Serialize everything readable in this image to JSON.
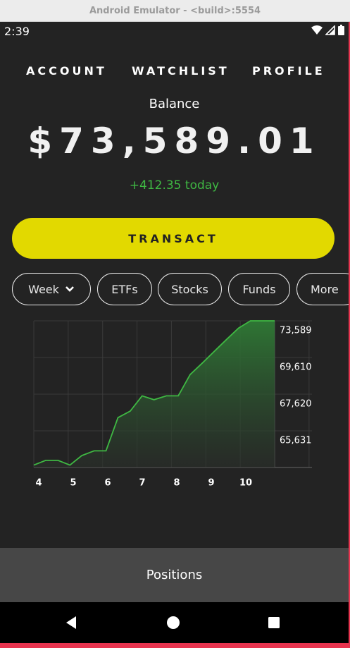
{
  "window": {
    "title": "Android Emulator - <build>:5554"
  },
  "status_bar": {
    "time": "2:39"
  },
  "nav": {
    "tabs": [
      "ACCOUNT",
      "WATCHLIST",
      "PROFILE"
    ]
  },
  "balance": {
    "label": "Balance",
    "value": "$73,589.01",
    "change": "+412.35 today"
  },
  "transact_label": "TRANSACT",
  "filters": {
    "period": "Week",
    "chips": [
      "ETFs",
      "Stocks",
      "Funds",
      "More"
    ]
  },
  "colors": {
    "accent": "#e2d900",
    "positive": "#3fb843",
    "background": "#232323"
  },
  "chart_data": {
    "type": "area",
    "x": [
      4,
      4.33,
      4.67,
      5,
      5.33,
      5.67,
      6,
      6.33,
      6.67,
      7,
      7.33,
      7.67,
      8,
      8.33,
      8.67,
      9,
      9.33,
      9.67,
      10,
      10.33,
      10.67
    ],
    "values": [
      64650,
      64940,
      64940,
      64650,
      65240,
      65530,
      65530,
      67590,
      67990,
      68940,
      68700,
      68940,
      68940,
      70260,
      70980,
      71700,
      72420,
      73140,
      73589,
      73589,
      73589
    ],
    "x_ticks": [
      "4",
      "5",
      "6",
      "7",
      "8",
      "9",
      "10"
    ],
    "y_ticks": [
      "73,589",
      "69,610",
      "67,620",
      "65,631"
    ],
    "grid": true
  },
  "positions_label": "Positions"
}
